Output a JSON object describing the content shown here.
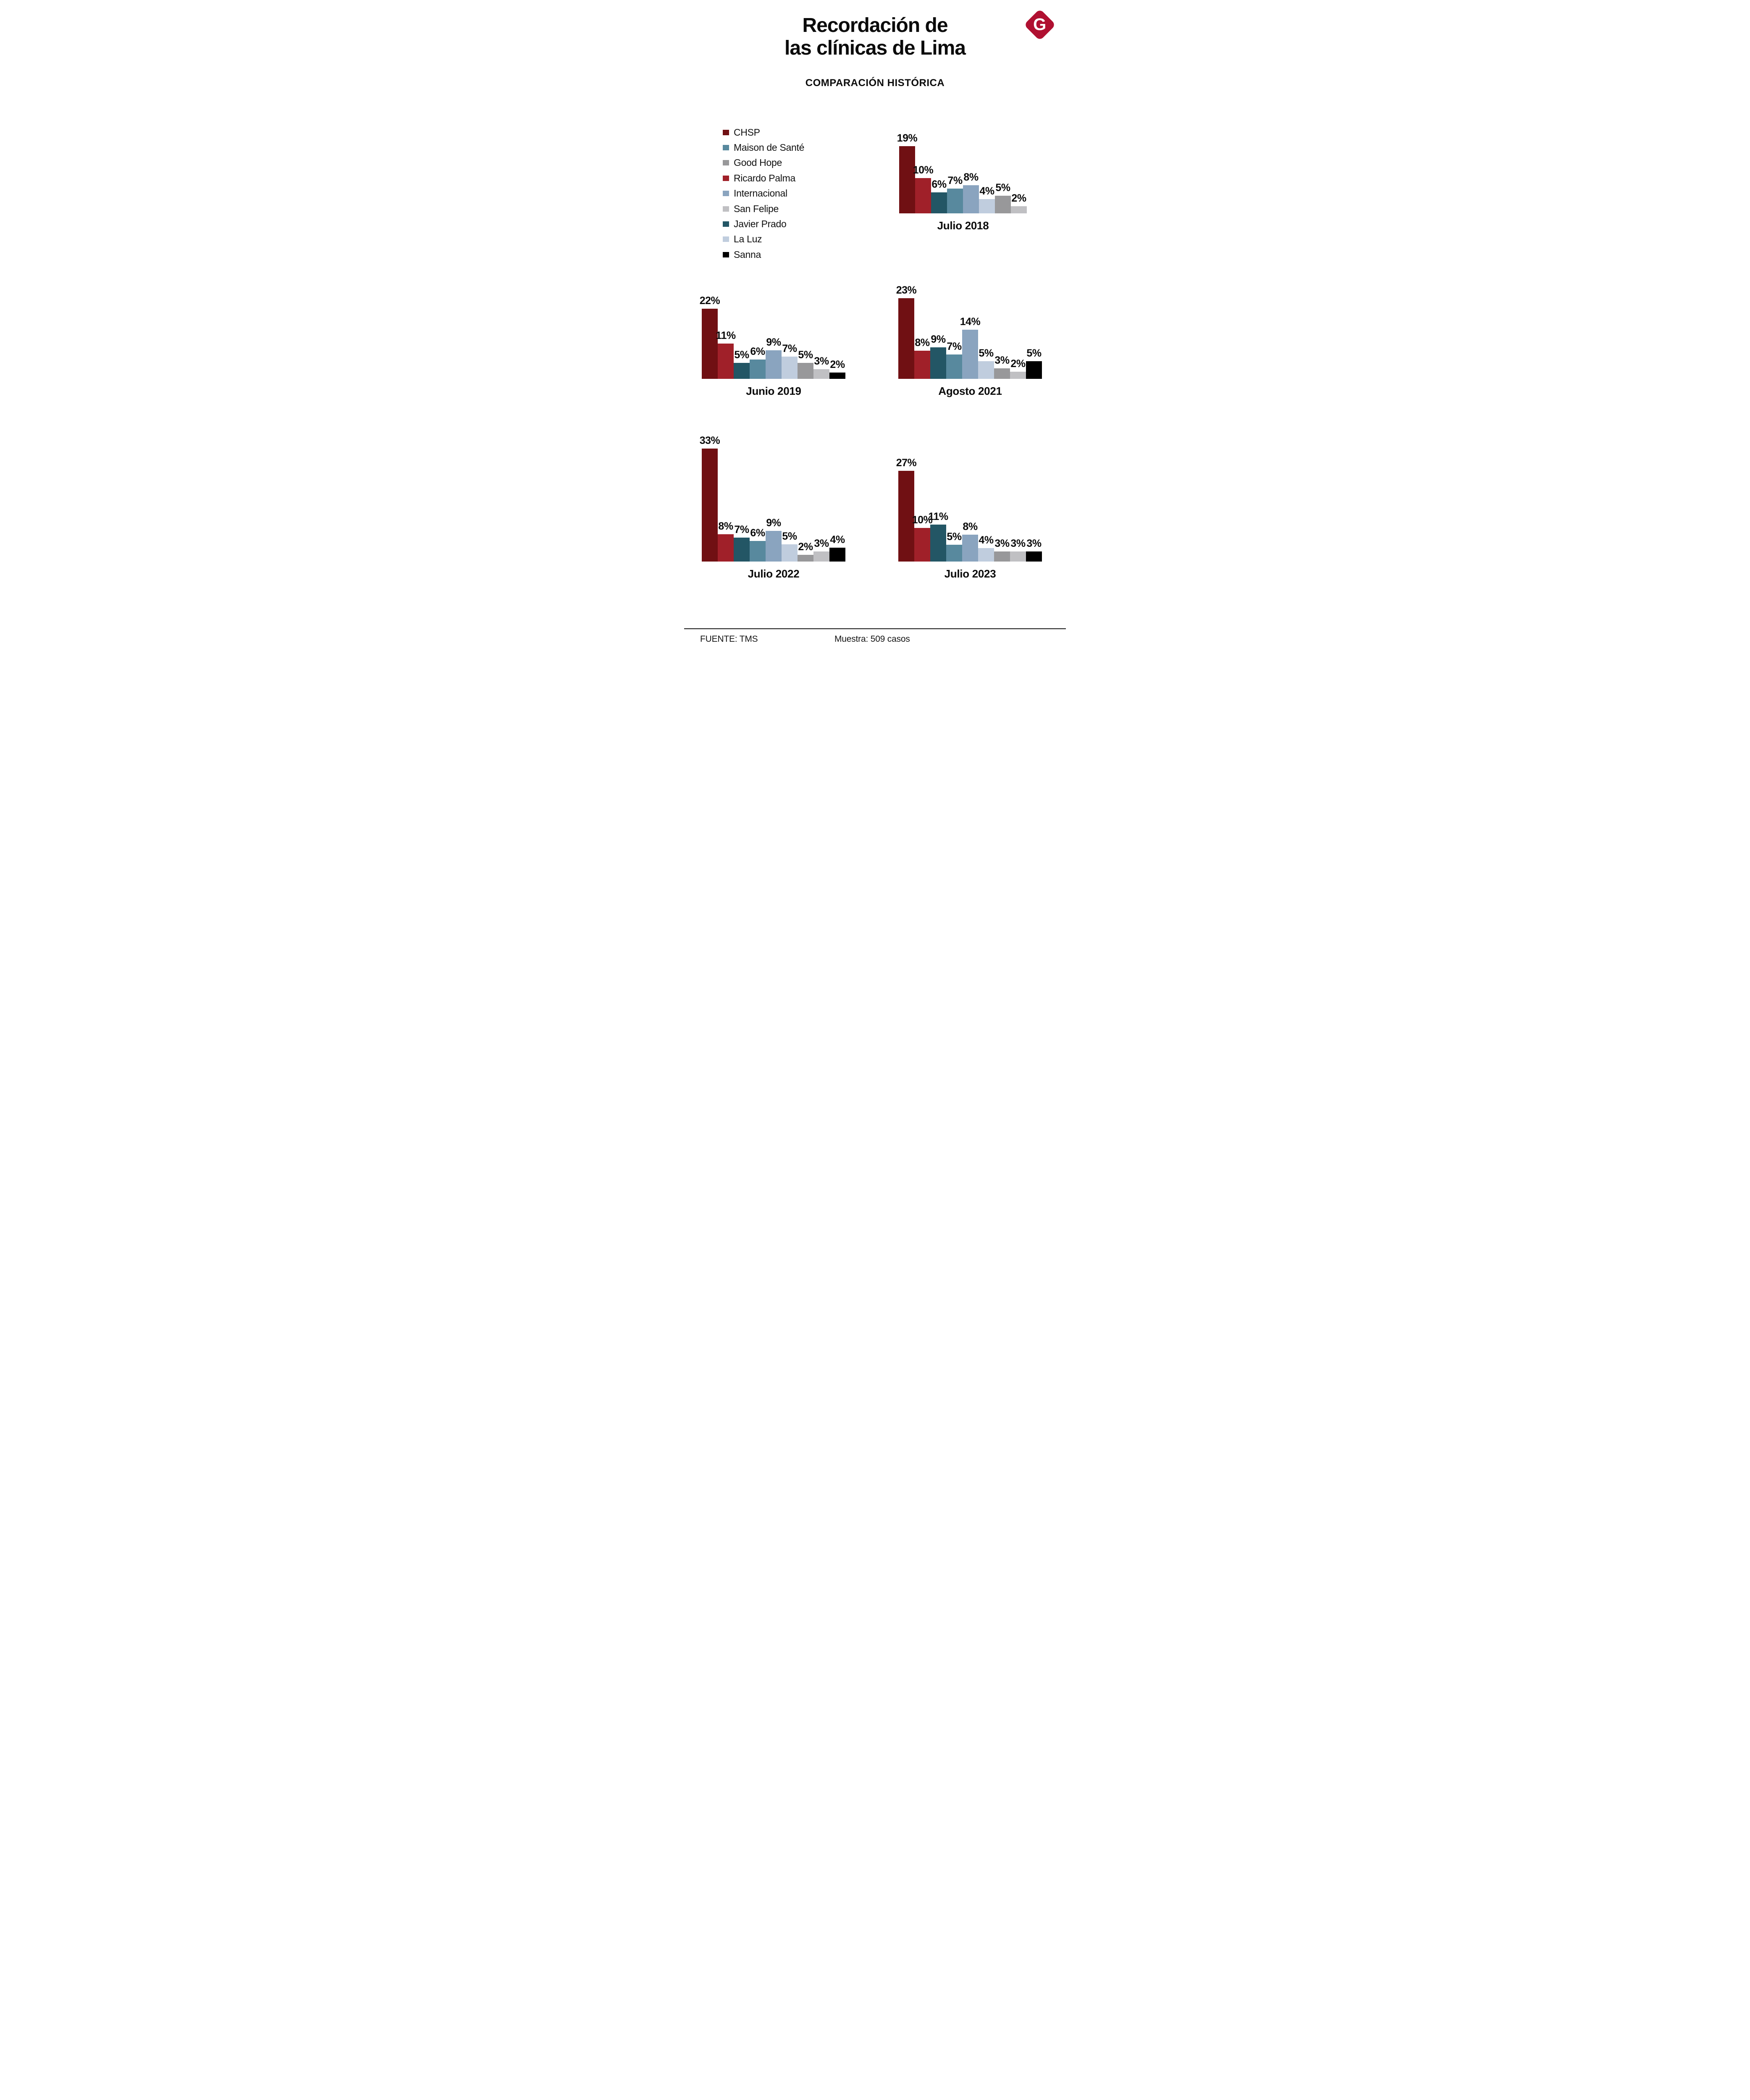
{
  "page": {
    "title_line1": "Recordación de",
    "title_line2": "las clínicas de Lima",
    "subtitle": "COMPARACIÓN HISTÓRICA",
    "logo_letter": "G",
    "logo_color": "#B01031",
    "footer": {
      "source": "FUENTE: TMS",
      "sample": "Muestra: 509 casos"
    }
  },
  "legend": {
    "position": "top-left",
    "items": [
      {
        "label": "CHSP",
        "color": "#701013"
      },
      {
        "label": "Maison de Santé",
        "color": "#58899E"
      },
      {
        "label": "Good Hope",
        "color": "#98989A"
      },
      {
        "label": "Ricardo Palma",
        "color": "#A02029"
      },
      {
        "label": "Internacional",
        "color": "#8AA4BF"
      },
      {
        "label": "San Felipe",
        "color": "#C0C0C3"
      },
      {
        "label": "Javier Prado",
        "color": "#235665"
      },
      {
        "label": "La Luz",
        "color": "#C0CDDE"
      },
      {
        "label": "Sanna",
        "color": "#000000"
      }
    ]
  },
  "chart_data": {
    "type": "bar",
    "title": "Recordación de las clínicas de Lima",
    "subtitle": "COMPARACIÓN HISTÓRICA",
    "unit": "%",
    "value_labels": "shown above each bar",
    "axes": "none (no gridlines, no axis lines, labels only)",
    "bar_order": [
      "CHSP",
      "Ricardo Palma",
      "Javier Prado",
      "Maison de Santé",
      "Internacional",
      "La Luz",
      "Good Hope",
      "San Felipe",
      "Sanna"
    ],
    "charts": [
      {
        "label": "Julio 2018",
        "series": [
          {
            "name": "CHSP",
            "value": 19
          },
          {
            "name": "Ricardo Palma",
            "value": 10
          },
          {
            "name": "Javier Prado",
            "value": 6
          },
          {
            "name": "Maison de Santé",
            "value": 7
          },
          {
            "name": "Internacional",
            "value": 8
          },
          {
            "name": "La Luz",
            "value": 4
          },
          {
            "name": "Good Hope",
            "value": 5
          },
          {
            "name": "San Felipe",
            "value": 2
          }
        ]
      },
      {
        "label": "Junio 2019",
        "series": [
          {
            "name": "CHSP",
            "value": 22
          },
          {
            "name": "Ricardo Palma",
            "value": 11
          },
          {
            "name": "Javier Prado",
            "value": 5
          },
          {
            "name": "Maison de Santé",
            "value": 6
          },
          {
            "name": "Internacional",
            "value": 9
          },
          {
            "name": "La Luz",
            "value": 7
          },
          {
            "name": "Good Hope",
            "value": 5
          },
          {
            "name": "San Felipe",
            "value": 3
          },
          {
            "name": "Sanna",
            "value": 2
          }
        ]
      },
      {
        "label": "Agosto 2021",
        "series": [
          {
            "name": "CHSP",
            "value": 23
          },
          {
            "name": "Ricardo Palma",
            "value": 8
          },
          {
            "name": "Javier Prado",
            "value": 9
          },
          {
            "name": "Maison de Santé",
            "value": 7
          },
          {
            "name": "Internacional",
            "value": 14
          },
          {
            "name": "La Luz",
            "value": 5
          },
          {
            "name": "Good Hope",
            "value": 3
          },
          {
            "name": "San Felipe",
            "value": 2
          },
          {
            "name": "Sanna",
            "value": 5
          }
        ]
      },
      {
        "label": "Julio 2022",
        "series": [
          {
            "name": "CHSP",
            "value": 33
          },
          {
            "name": "Ricardo Palma",
            "value": 8
          },
          {
            "name": "Javier Prado",
            "value": 7
          },
          {
            "name": "Maison de Santé",
            "value": 6
          },
          {
            "name": "Internacional",
            "value": 9
          },
          {
            "name": "La Luz",
            "value": 5
          },
          {
            "name": "Good Hope",
            "value": 2
          },
          {
            "name": "San Felipe",
            "value": 3
          },
          {
            "name": "Sanna",
            "value": 4
          }
        ]
      },
      {
        "label": "Julio 2023",
        "series": [
          {
            "name": "CHSP",
            "value": 27
          },
          {
            "name": "Ricardo Palma",
            "value": 10
          },
          {
            "name": "Javier Prado",
            "value": 11
          },
          {
            "name": "Maison de Santé",
            "value": 5
          },
          {
            "name": "Internacional",
            "value": 8
          },
          {
            "name": "La Luz",
            "value": 4
          },
          {
            "name": "Good Hope",
            "value": 3
          },
          {
            "name": "San Felipe",
            "value": 3
          },
          {
            "name": "Sanna",
            "value": 3
          }
        ]
      }
    ]
  }
}
